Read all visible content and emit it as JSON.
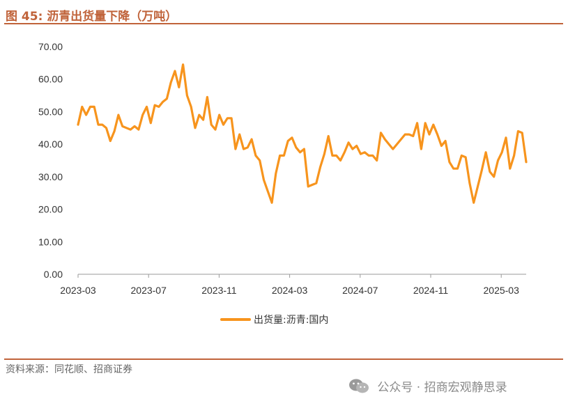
{
  "figure": {
    "title": "图 45:  沥青出货量下降（万吨）",
    "source": "资料来源：同花顺、招商证券",
    "watermark": "公众号 · 招商宏观静思录",
    "watermark_icon": "wechat-icon",
    "accent_color": "#c0633a"
  },
  "chart_data": {
    "type": "line",
    "title": "沥青出货量下降（万吨）",
    "xlabel": "",
    "ylabel": "",
    "ylim": [
      0,
      70
    ],
    "yticks": [
      "0.00",
      "10.00",
      "20.00",
      "30.00",
      "40.00",
      "50.00",
      "60.00",
      "70.00"
    ],
    "xticks": [
      "2023-03",
      "2023-07",
      "2023-11",
      "2024-03",
      "2024-07",
      "2024-11",
      "2025-03"
    ],
    "grid": false,
    "legend_position": "bottom",
    "series": [
      {
        "name": "出货量:沥青:国内",
        "color": "#f7941d",
        "values": [
          46,
          51.5,
          49,
          51.5,
          51.5,
          46,
          46,
          45,
          41,
          44,
          49,
          45.5,
          45,
          44.5,
          45.5,
          44.5,
          49,
          51.5,
          46.5,
          52,
          51.5,
          53,
          54,
          59,
          62.5,
          57.5,
          64.5,
          55,
          51.5,
          45,
          49,
          47.5,
          54.5,
          46,
          44.5,
          49,
          46,
          48,
          48,
          38.5,
          43,
          38.5,
          39,
          41.5,
          36.5,
          35,
          29,
          25.5,
          22,
          31,
          36.5,
          36.5,
          41,
          42,
          39,
          37.5,
          38.5,
          27,
          27.5,
          28,
          33,
          37,
          42.5,
          36.5,
          36.5,
          35,
          37.5,
          40.5,
          38.5,
          39.5,
          37,
          37.5,
          36.5,
          36.5,
          35,
          43.5,
          41.5,
          40,
          38.5,
          40,
          41.5,
          43,
          43,
          42.5,
          46.5,
          38.5,
          46.5,
          43,
          46,
          43,
          39.5,
          41,
          34.5,
          32.5,
          32.5,
          36.5,
          36,
          28,
          22,
          27,
          32,
          37.5,
          31.5,
          30,
          35,
          37.5,
          42,
          32.5,
          36.5,
          44,
          43.5,
          34.5
        ]
      }
    ]
  }
}
